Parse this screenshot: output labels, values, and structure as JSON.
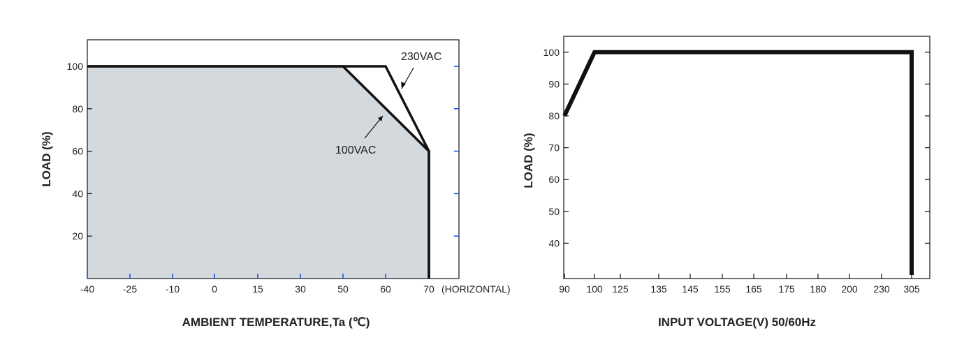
{
  "chart_data": [
    {
      "type": "area",
      "xlabel": "AMBIENT TEMPERATURE,Ta (℃)",
      "ylabel": "LOAD (%)",
      "x_ticks": [
        "-40",
        "-25",
        "-10",
        "0",
        "15",
        "30",
        "50",
        "60",
        "70"
      ],
      "x_note": "(HORIZONTAL)",
      "y_ticks": [
        "20",
        "40",
        "60",
        "80",
        "100"
      ],
      "ylim": [
        0,
        110
      ],
      "grid": false,
      "fill_color": "#d4d9de",
      "series": [
        {
          "name": "100VAC",
          "points": [
            [
              -40,
              100
            ],
            [
              50,
              100
            ],
            [
              70,
              60
            ],
            [
              70,
              0
            ]
          ]
        },
        {
          "name": "230VAC",
          "points": [
            [
              -40,
              100
            ],
            [
              60,
              100
            ],
            [
              70,
              60
            ],
            [
              70,
              0
            ]
          ]
        }
      ]
    },
    {
      "type": "line",
      "xlabel": "INPUT VOLTAGE(V) 50/60Hz",
      "ylabel": "LOAD (%)",
      "x_ticks": [
        "90",
        "100",
        "125",
        "135",
        "145",
        "155",
        "165",
        "175",
        "180",
        "200",
        "230",
        "305"
      ],
      "y_ticks": [
        "40",
        "50",
        "60",
        "70",
        "80",
        "90",
        "100"
      ],
      "ylim": [
        30,
        105
      ],
      "grid": false,
      "series": [
        {
          "points": [
            [
              90,
              80
            ],
            [
              100,
              100
            ],
            [
              305,
              100
            ],
            [
              305,
              30
            ]
          ]
        }
      ]
    }
  ]
}
